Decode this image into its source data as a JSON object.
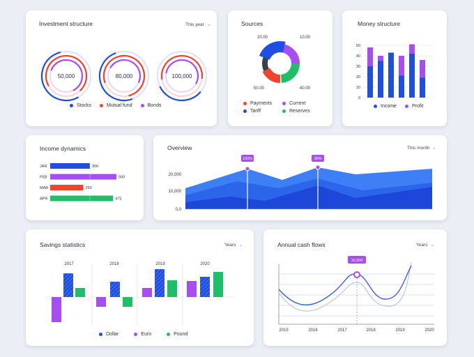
{
  "colors": {
    "blue": "#1f4fe0",
    "red": "#f0442e",
    "purple": "#a64ef0",
    "green": "#1fbf6a",
    "lightblue": "#3f7ff5",
    "gray": "#3b3f4a"
  },
  "investment": {
    "title": "Investment structure",
    "period": "This year",
    "values": [
      "50,000",
      "80,000",
      "100,000"
    ],
    "legend": [
      "Stocks",
      "Mutual fund",
      "Bonds"
    ]
  },
  "sources": {
    "title": "Sources",
    "labels": [
      "20.00",
      "10.00",
      "50.00",
      "40.00"
    ],
    "legend": [
      "Payments",
      "Current",
      "Tariff",
      "Reserves"
    ]
  },
  "money": {
    "title": "Money structure",
    "yticks": [
      "50",
      "40",
      "30",
      "20",
      "10",
      "0"
    ],
    "legend": [
      "Income",
      "Profit"
    ],
    "chart_data": {
      "type": "bar",
      "series": [
        {
          "name": "Income",
          "values": [
            30,
            35,
            43,
            21,
            42,
            19
          ]
        },
        {
          "name": "Profit",
          "values": [
            18,
            5,
            0,
            19,
            9,
            17
          ]
        }
      ],
      "ylim": [
        0,
        50
      ]
    }
  },
  "income": {
    "title": "Income dynamics",
    "months": [
      "JAN",
      "FEB",
      "MAR",
      "APR"
    ],
    "values": [
      "300",
      "500",
      "250",
      "475"
    ],
    "chart_data": {
      "type": "bar",
      "categories": [
        "JAN",
        "FEB",
        "MAR",
        "APR"
      ],
      "values": [
        300,
        500,
        250,
        475
      ]
    }
  },
  "overview": {
    "title": "Overview",
    "period": "This month",
    "yticks": [
      "20,000",
      "10,000",
      "0,0"
    ],
    "markers": [
      "100%",
      "30%"
    ]
  },
  "savings": {
    "title": "Savings statistics",
    "period": "Years",
    "years": [
      "2017",
      "2018",
      "2019",
      "2020"
    ],
    "legend": [
      "Dollar",
      "Euro",
      "Pound"
    ]
  },
  "cashflow": {
    "title": "Annual cash flows",
    "period": "Years",
    "years": [
      "2015",
      "2016",
      "2017",
      "2018",
      "2019",
      "2020"
    ],
    "marker": "10,000"
  }
}
